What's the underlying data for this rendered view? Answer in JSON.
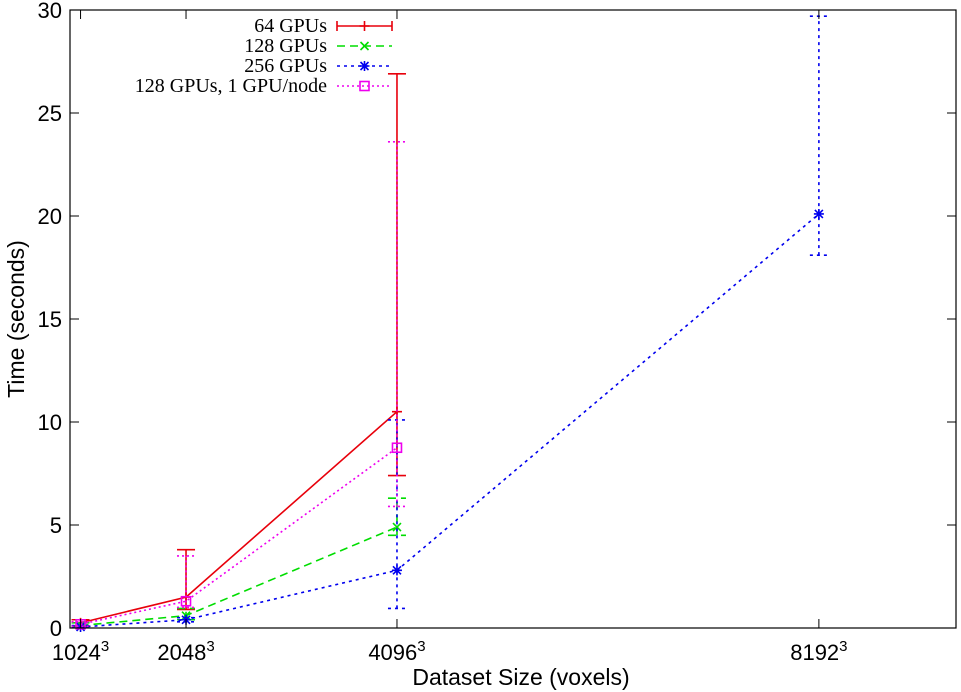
{
  "chart_data": {
    "type": "line",
    "xlabel": "Dataset Size (voxels)",
    "ylabel": "Time (seconds)",
    "ylim": [
      0,
      30
    ],
    "yticks": [
      0,
      5,
      10,
      15,
      20,
      25,
      30
    ],
    "xlim": [
      0.9,
      9.3
    ],
    "xticks": [
      {
        "x": 1,
        "base": "1024",
        "exp": "3"
      },
      {
        "x": 2,
        "base": "2048",
        "exp": "3"
      },
      {
        "x": 4,
        "base": "4096",
        "exp": "3"
      },
      {
        "x": 8,
        "base": "8192",
        "exp": "3"
      }
    ],
    "grid": false,
    "legend_position": "top-center",
    "series": [
      {
        "name": "64 GPUs",
        "color": "#e8000b",
        "dash": "",
        "marker": "plus",
        "points": [
          {
            "x": 1,
            "y": 0.25,
            "lo": 0.1,
            "hi": 0.4
          },
          {
            "x": 2,
            "y": 1.5,
            "lo": 0.9,
            "hi": 3.8
          },
          {
            "x": 4,
            "y": 10.5,
            "lo": 7.4,
            "hi": 26.9
          }
        ]
      },
      {
        "name": "128 GPUs",
        "color": "#00dd00",
        "dash": "8,5",
        "marker": "x",
        "points": [
          {
            "x": 1,
            "y": 0.12,
            "lo": 0.05,
            "hi": 0.25
          },
          {
            "x": 2,
            "y": 0.6,
            "lo": 0.4,
            "hi": 0.95
          },
          {
            "x": 4,
            "y": 4.9,
            "lo": 4.5,
            "hi": 6.3
          }
        ]
      },
      {
        "name": "256 GPUs",
        "color": "#0000ee",
        "dash": "3,4",
        "marker": "star",
        "points": [
          {
            "x": 1,
            "y": 0.05,
            "lo": 0.02,
            "hi": 0.12
          },
          {
            "x": 2,
            "y": 0.4,
            "lo": 0.3,
            "hi": 0.5
          },
          {
            "x": 4,
            "y": 2.8,
            "lo": 0.95,
            "hi": 10.1
          },
          {
            "x": 8,
            "y": 20.1,
            "lo": 18.1,
            "hi": 29.7
          }
        ]
      },
      {
        "name": "128 GPUs, 1 GPU/node",
        "color": "#ee00ee",
        "dash": "2,3",
        "marker": "square",
        "points": [
          {
            "x": 1,
            "y": 0.18,
            "lo": 0.08,
            "hi": 0.3
          },
          {
            "x": 2,
            "y": 1.3,
            "lo": 1.0,
            "hi": 3.5
          },
          {
            "x": 4,
            "y": 8.75,
            "lo": 5.9,
            "hi": 23.6
          }
        ]
      }
    ]
  }
}
